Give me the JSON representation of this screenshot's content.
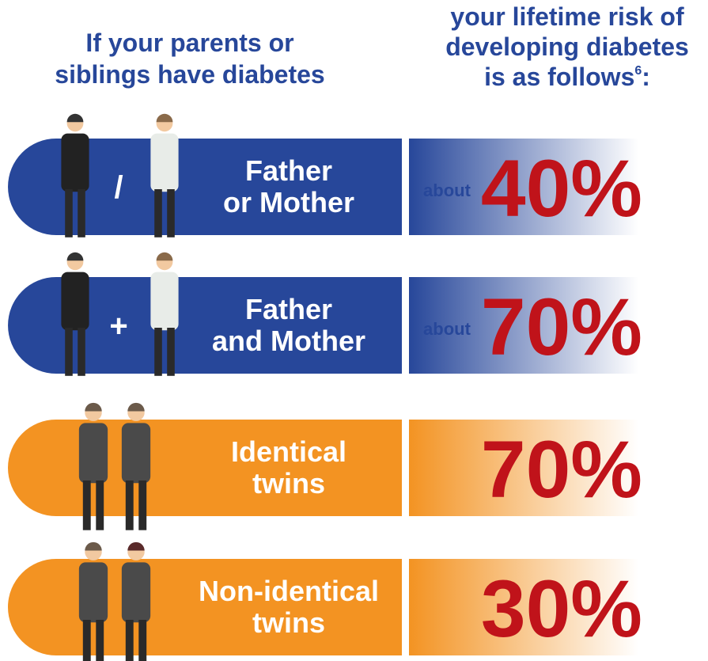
{
  "header": {
    "left": [
      "If your parents or",
      "siblings have diabetes"
    ],
    "right": [
      "your lifetime risk of",
      "developing diabetes"
    ],
    "right_last": "is as follows",
    "footnote": "6",
    "punctuation": ":"
  },
  "rows": [
    {
      "label": [
        "Father",
        "or Mother"
      ],
      "connector": "/",
      "qualifier": "about",
      "risk": "40%",
      "color": "#27479a"
    },
    {
      "label": [
        "Father",
        "and Mother"
      ],
      "connector": "+",
      "qualifier": "about",
      "risk": "70%",
      "color": "#27479a"
    },
    {
      "label": [
        "Identical",
        "twins"
      ],
      "risk": "70%",
      "color": "#f39322"
    },
    {
      "label": [
        "Non-identical",
        "twins"
      ],
      "risk": "30%",
      "color": "#f39322"
    }
  ]
}
